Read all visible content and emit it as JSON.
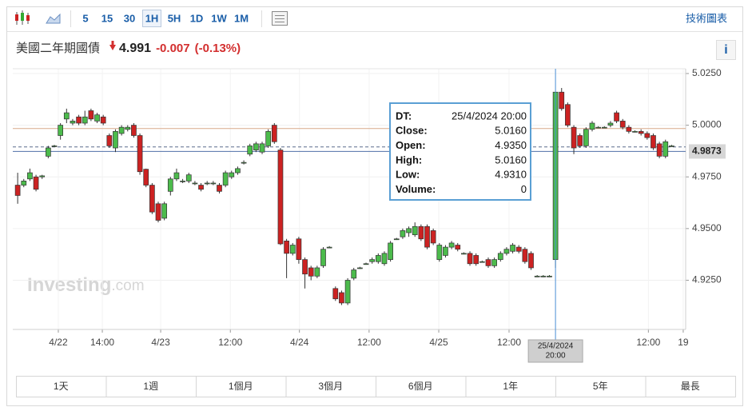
{
  "toolbar": {
    "intervals": [
      "5",
      "15",
      "30",
      "1H",
      "5H",
      "1D",
      "1W",
      "1M"
    ],
    "active_interval": 3,
    "chart_link": "技術圖表"
  },
  "header": {
    "name": "美國二年期國債",
    "price": "4.991",
    "change": "-0.007",
    "change_pct": "(-0.13%)",
    "info": "i"
  },
  "watermark": {
    "brand": "Investing",
    "suffix": ".com"
  },
  "chart_data": {
    "type": "candlestick",
    "up_color": "#4cbb4c",
    "down_color": "#cc2222",
    "grid": true,
    "open": [
      4.971,
      4.971,
      4.974,
      4.975,
      4.975,
      4.985,
      4.99,
      4.995,
      5.003,
      5.001,
      5.004,
      5.001,
      5.007,
      5.002,
      5.004,
      4.995,
      4.989,
      4.996,
      4.998,
      5.0,
      4.995,
      4.9787,
      4.971,
      4.962,
      4.955,
      4.968,
      4.974,
      4.973,
      4.973,
      4.972,
      4.971,
      4.972,
      4.972,
      4.971,
      4.971,
      4.975,
      4.977,
      4.982,
      4.986,
      4.988,
      4.987,
      4.99,
      5.0,
      4.988,
      4.944,
      4.938,
      4.945,
      4.935,
      4.931,
      4.927,
      4.932,
      4.941,
      4.921,
      4.919,
      4.914,
      4.926,
      4.931,
      4.933,
      4.934,
      4.934,
      4.933,
      4.935,
      4.945,
      4.946,
      4.948,
      4.947,
      4.951,
      4.951,
      4.949,
      4.935,
      4.937,
      4.941,
      4.942,
      4.938,
      4.938,
      4.937,
      4.934,
      4.935,
      4.932,
      4.935,
      4.938,
      4.939,
      4.941,
      4.94,
      4.938,
      4.927,
      4.927,
      4.927,
      4.935,
      5.016,
      5.01,
      4.999,
      4.995,
      4.99,
      4.998,
      4.999,
      4.999,
      5.0,
      5.006,
      5.002,
      4.999,
      4.997,
      4.997,
      4.996,
      4.995,
      4.991,
      4.985,
      4.99
    ],
    "high": [
      4.977,
      4.974,
      4.979,
      4.976,
      4.976,
      4.99,
      4.9905,
      5.001,
      5.008,
      5.003,
      5.005,
      5.007,
      5.008,
      5.006,
      5.005,
      4.996,
      4.998,
      5.0,
      5.0,
      5.001,
      4.996,
      4.979,
      4.972,
      4.963,
      4.963,
      4.975,
      4.979,
      4.974,
      4.977,
      4.973,
      4.972,
      4.973,
      4.973,
      4.972,
      4.978,
      4.978,
      4.98,
      4.983,
      4.991,
      4.992,
      4.992,
      4.998,
      5.001,
      4.989,
      4.945,
      4.943,
      4.946,
      4.936,
      4.932,
      4.932,
      4.941,
      4.9415,
      4.922,
      4.92,
      4.926,
      4.931,
      4.9315,
      4.9335,
      4.936,
      4.938,
      4.939,
      4.944,
      4.9455,
      4.95,
      4.951,
      4.953,
      4.952,
      4.952,
      4.95,
      4.943,
      4.942,
      4.944,
      4.943,
      4.9385,
      4.939,
      4.938,
      4.9345,
      4.936,
      4.936,
      4.939,
      4.941,
      4.943,
      4.942,
      4.941,
      4.939,
      4.9275,
      4.9275,
      4.9275,
      5.016,
      5.018,
      5.011,
      5.0,
      4.996,
      4.999,
      5.002,
      4.9995,
      4.9995,
      5.002,
      5.007,
      5.003,
      5.0,
      4.9975,
      4.998,
      4.997,
      4.996,
      4.992,
      4.993,
      4.9905
    ],
    "low": [
      4.962,
      4.97,
      4.973,
      4.968,
      4.974,
      4.984,
      4.9895,
      4.993,
      5.001,
      5.0,
      5.0,
      5.0,
      5.002,
      5.001,
      5.0,
      4.989,
      4.987,
      4.995,
      4.997,
      4.994,
      4.976,
      4.97,
      4.957,
      4.953,
      4.954,
      4.966,
      4.973,
      4.972,
      4.972,
      4.971,
      4.968,
      4.971,
      4.971,
      4.967,
      4.97,
      4.974,
      4.976,
      4.981,
      4.985,
      4.987,
      4.986,
      4.989,
      4.991,
      4.942,
      4.926,
      4.937,
      4.933,
      4.921,
      4.925,
      4.926,
      4.931,
      4.9405,
      4.915,
      4.913,
      4.913,
      4.925,
      4.9305,
      4.9325,
      4.933,
      4.933,
      4.932,
      4.934,
      4.9445,
      4.945,
      4.946,
      4.946,
      4.944,
      4.94,
      4.942,
      4.934,
      4.936,
      4.94,
      4.939,
      4.9375,
      4.932,
      4.932,
      4.9335,
      4.931,
      4.931,
      4.934,
      4.937,
      4.938,
      4.938,
      4.933,
      4.93,
      4.9265,
      4.9265,
      4.9265,
      4.931,
      5.007,
      4.999,
      4.986,
      4.989,
      4.989,
      4.997,
      4.9985,
      4.9985,
      4.999,
      5.001,
      4.998,
      4.996,
      4.9965,
      4.995,
      4.993,
      4.988,
      4.984,
      4.984,
      4.9895
    ],
    "close": [
      4.966,
      4.973,
      4.977,
      4.969,
      4.9755,
      4.989,
      4.99,
      5.0,
      5.006,
      5.002,
      5.001,
      5.004,
      5.003,
      5.005,
      5.001,
      4.99,
      4.997,
      4.999,
      4.999,
      4.995,
      4.9775,
      4.971,
      4.958,
      4.954,
      4.962,
      4.974,
      4.977,
      4.973,
      4.976,
      4.972,
      4.969,
      4.972,
      4.972,
      4.968,
      4.977,
      4.977,
      4.979,
      4.982,
      4.99,
      4.991,
      4.991,
      4.997,
      4.992,
      4.9426,
      4.938,
      4.942,
      4.935,
      4.928,
      4.927,
      4.931,
      4.94,
      4.941,
      4.916,
      4.914,
      4.925,
      4.93,
      4.931,
      4.933,
      4.935,
      4.937,
      4.938,
      4.943,
      4.945,
      4.949,
      4.95,
      4.951,
      4.945,
      4.941,
      4.943,
      4.942,
      4.941,
      4.943,
      4.94,
      4.938,
      4.933,
      4.933,
      4.934,
      4.932,
      4.935,
      4.938,
      4.94,
      4.942,
      4.939,
      4.934,
      4.931,
      4.927,
      4.927,
      4.927,
      5.016,
      5.008,
      5.0,
      4.989,
      4.99,
      4.998,
      5.001,
      4.999,
      4.999,
      5.001,
      5.002,
      4.999,
      4.997,
      4.997,
      4.996,
      4.994,
      4.989,
      4.985,
      4.992,
      4.99
    ],
    "xlim": [
      -0.8,
      109.3
    ],
    "xticks": [
      {
        "value": 6.65,
        "label": "4/22"
      },
      {
        "value": 13.85,
        "label": "14:00"
      },
      {
        "value": 23.4,
        "label": "4/23"
      },
      {
        "value": 34.8,
        "label": "12:00"
      },
      {
        "value": 46.1,
        "label": "4/24"
      },
      {
        "value": 57.5,
        "label": "12:00"
      },
      {
        "value": 68.9,
        "label": "4/25"
      },
      {
        "value": 80.4,
        "label": "12:00"
      },
      {
        "value": 103.2,
        "label": "12:00"
      },
      {
        "value": 108.9,
        "label": "19"
      }
    ],
    "ylim": [
      4.9012,
      5.0273
    ],
    "yticks": [
      {
        "value": 4.925,
        "label": "4.9250"
      },
      {
        "value": 4.95,
        "label": "4.9500"
      },
      {
        "value": 4.975,
        "label": "4.9750"
      },
      {
        "value": 5.0,
        "label": "5.0000"
      },
      {
        "value": 5.025,
        "label": "5.0250"
      }
    ],
    "last_price": {
      "value": 4.9873,
      "label": "4.9873"
    },
    "prev_close": 4.9984,
    "dashed_level": 4.9895,
    "crosshair": {
      "x": 88,
      "label": [
        "25/4/2024",
        "20:00"
      ]
    }
  },
  "tooltip": {
    "rows": [
      [
        "DT:",
        "25/4/2024 20:00"
      ],
      [
        "Close:",
        "5.0160"
      ],
      [
        "Open:",
        "4.9350"
      ],
      [
        "High:",
        "5.0160"
      ],
      [
        "Low:",
        "4.9310"
      ],
      [
        "Volume:",
        "0"
      ]
    ]
  },
  "ranges": [
    "1天",
    "1週",
    "1個月",
    "3個月",
    "6個月",
    "1年",
    "5年",
    "最長"
  ]
}
